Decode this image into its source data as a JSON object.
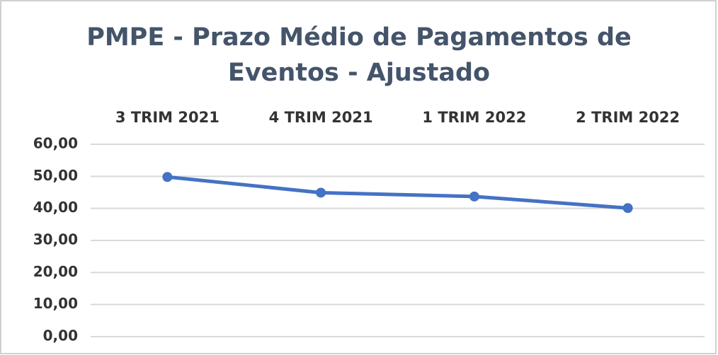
{
  "chart_data": {
    "type": "line",
    "title": "PMPE - Prazo Médio de Pagamentos de Eventos - Ajustado",
    "categories": [
      "3 TRIM 2021",
      "4 TRIM 2021",
      "1 TRIM 2022",
      "2 TRIM 2022"
    ],
    "series": [
      {
        "name": "PMPE",
        "color": "#4472c4",
        "values": [
          49.8,
          44.9,
          43.7,
          40.1
        ]
      }
    ],
    "ylim": [
      0,
      60
    ],
    "yticks": [
      {
        "value": 0,
        "label": "0,00"
      },
      {
        "value": 10,
        "label": "10,00"
      },
      {
        "value": 20,
        "label": "20,00"
      },
      {
        "value": 30,
        "label": "30,00"
      },
      {
        "value": 40,
        "label": "40,00"
      },
      {
        "value": 50,
        "label": "50,00"
      },
      {
        "value": 60,
        "label": "60,00"
      }
    ],
    "grid": true
  }
}
